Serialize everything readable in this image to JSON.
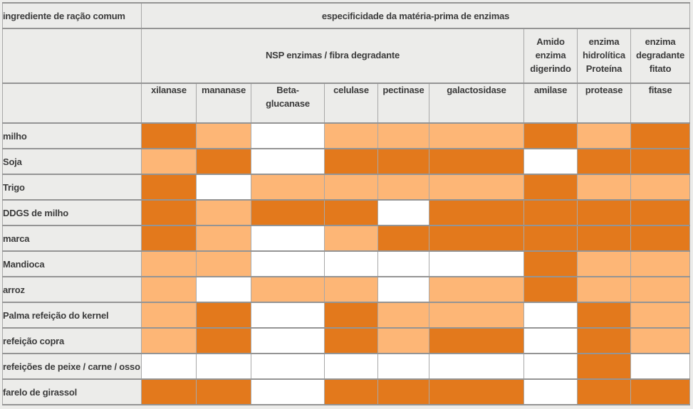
{
  "chart_data": {
    "type": "heatmap",
    "title": "especificidade da matéria-prima de enzimas",
    "row_header": "ingrediente de ração comum",
    "column_groups": [
      {
        "label": "NSP enzimas / fibra degradante",
        "span": 6
      },
      {
        "label": "Amido\nenzima\ndigerindo",
        "span": 1
      },
      {
        "label": "enzima\nhidrolítica\nProteína",
        "span": 1
      },
      {
        "label": "enzima\ndegradante\nfitato",
        "span": 1
      }
    ],
    "columns": [
      "xilanase",
      "mananase",
      "Beta-\nglucanase",
      "celulase",
      "pectinase",
      "galactosidase",
      "amilase",
      "protease",
      "fitase"
    ],
    "rows": [
      "milho",
      "Soja",
      "Trigo",
      "DDGS de milho",
      "marca",
      "Mandioca",
      "arroz",
      "Palma refeição do kernel",
      "refeição copra",
      "refeições de peixe / carne / osso",
      "farelo de girassol"
    ],
    "values": [
      [
        "dark",
        "light",
        "none",
        "light",
        "light",
        "light",
        "dark",
        "light",
        "dark"
      ],
      [
        "light",
        "dark",
        "none",
        "dark",
        "dark",
        "dark",
        "none",
        "dark",
        "dark"
      ],
      [
        "dark",
        "none",
        "light",
        "light",
        "light",
        "light",
        "dark",
        "light",
        "light"
      ],
      [
        "dark",
        "light",
        "dark",
        "dark",
        "none",
        "dark",
        "dark",
        "dark",
        "dark"
      ],
      [
        "dark",
        "light",
        "none",
        "light",
        "dark",
        "dark",
        "dark",
        "dark",
        "dark"
      ],
      [
        "light",
        "light",
        "none",
        "none",
        "none",
        "none",
        "dark",
        "light",
        "light"
      ],
      [
        "light",
        "none",
        "light",
        "light",
        "none",
        "light",
        "dark",
        "light",
        "light"
      ],
      [
        "light",
        "dark",
        "none",
        "dark",
        "light",
        "light",
        "none",
        "dark",
        "light"
      ],
      [
        "light",
        "dark",
        "none",
        "dark",
        "light",
        "dark",
        "none",
        "dark",
        "light"
      ],
      [
        "none",
        "none",
        "none",
        "none",
        "none",
        "none",
        "none",
        "dark",
        "none"
      ],
      [
        "dark",
        "dark",
        "none",
        "dark",
        "dark",
        "dark",
        "none",
        "dark",
        "dark"
      ]
    ],
    "value_colors": {
      "dark": "#e3791c",
      "light": "#fdb676",
      "none": "#ffffff"
    },
    "layout_colors": {
      "header_background": "#ececea",
      "grid_line": "#989898",
      "text": "#3b3b3b"
    }
  }
}
